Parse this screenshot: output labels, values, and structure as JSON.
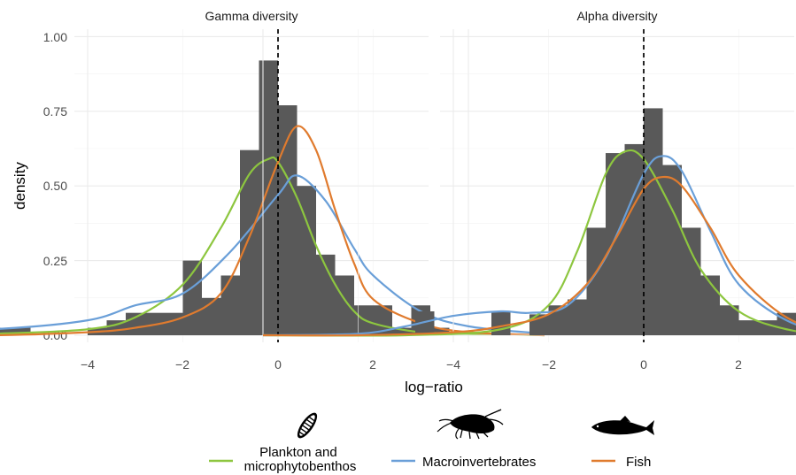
{
  "chart_data": {
    "type": "histogram+density",
    "ylabel": "density",
    "xlabel": "log−ratio",
    "xlim": [
      -4.05,
      2.85
    ],
    "ylim": [
      0,
      1.02
    ],
    "xticks": [
      -4,
      -2,
      0,
      2
    ],
    "xtick_labels": [
      "−4",
      "−2",
      "0",
      "2"
    ],
    "yticks": [
      0,
      0.25,
      0.5,
      0.75,
      1.0
    ],
    "ytick_labels": [
      "0.00",
      "0.25",
      "0.50",
      "0.75",
      "1.00"
    ],
    "reference_line": {
      "x": 0,
      "style": "dashed"
    },
    "grid": true,
    "bin_width": 0.2,
    "bar_color": "#595959",
    "legend": {
      "placement": "bottom",
      "entries": [
        {
          "label": "Plankton and microphytobenthos",
          "color": "#8DC63F",
          "icon": "diatom-icon"
        },
        {
          "label": "Macroinvertebrates",
          "color": "#6A9FD8",
          "icon": "amphipod-icon"
        },
        {
          "label": "Fish",
          "color": "#E07B2E",
          "icon": "fish-icon"
        }
      ]
    },
    "panels": [
      {
        "title": "Gamma diversity",
        "histogram": {
          "bin_left": [
            -4.0,
            -3.0,
            -2.8,
            -2.0,
            -1.8,
            -1.6,
            -1.4,
            -1.2,
            -1.0,
            -0.8,
            -0.6,
            -0.4,
            -0.2,
            0.0,
            0.2,
            0.4,
            0.6,
            0.8,
            1.0,
            1.2,
            1.4,
            1.6,
            2.0
          ],
          "density": [
            0.025,
            0.025,
            0.025,
            0.025,
            0.05,
            0.075,
            0.075,
            0.075,
            0.25,
            0.125,
            0.2,
            0.62,
            0.92,
            0.77,
            0.5,
            0.27,
            0.2,
            0.1,
            0.1,
            0.025,
            0.1,
            0.025,
            0.0
          ]
        },
        "series": [
          {
            "name": "Plankton and microphytobenthos",
            "x": [
              -4.0,
              -3.0,
              -2.0,
              -1.5,
              -1.0,
              -0.6,
              -0.3,
              -0.1,
              0.0,
              0.2,
              0.4,
              0.6,
              0.8,
              1.0,
              1.5,
              2.0,
              2.8
            ],
            "y": [
              0.0,
              0.005,
              0.02,
              0.06,
              0.17,
              0.36,
              0.54,
              0.59,
              0.58,
              0.46,
              0.3,
              0.17,
              0.08,
              0.04,
              0.01,
              0.005,
              0.0
            ]
          },
          {
            "name": "Macroinvertebrates",
            "x": [
              -4.0,
              -3.0,
              -2.0,
              -1.5,
              -1.0,
              -0.5,
              0.0,
              0.2,
              0.5,
              0.8,
              1.0,
              1.5,
              2.0,
              2.8
            ],
            "y": [
              0.015,
              0.02,
              0.05,
              0.1,
              0.14,
              0.28,
              0.47,
              0.535,
              0.45,
              0.29,
              0.2,
              0.08,
              0.03,
              0.005
            ]
          },
          {
            "name": "Fish",
            "x": [
              -4.0,
              -3.0,
              -2.0,
              -1.5,
              -1.0,
              -0.6,
              -0.3,
              0.0,
              0.2,
              0.4,
              0.6,
              0.8,
              1.0,
              1.5,
              2.0,
              2.8
            ],
            "y": [
              0.0,
              0.0,
              0.01,
              0.025,
              0.06,
              0.14,
              0.33,
              0.58,
              0.7,
              0.62,
              0.42,
              0.24,
              0.12,
              0.04,
              0.01,
              0.0
            ]
          }
        ]
      },
      {
        "title": "Alpha diversity",
        "histogram": {
          "bin_left": [
            -2.4,
            -1.6,
            -1.2,
            -1.0,
            -0.8,
            -0.6,
            -0.4,
            -0.2,
            0.0,
            0.2,
            0.4,
            0.6,
            0.8,
            1.0,
            1.2,
            1.4,
            2.6
          ],
          "density": [
            0.08,
            0.08,
            0.07,
            0.1,
            0.12,
            0.36,
            0.61,
            0.64,
            0.76,
            0.57,
            0.36,
            0.2,
            0.1,
            0.05,
            0.05,
            0.075,
            0.04
          ]
        },
        "series": [
          {
            "name": "Plankton and microphytobenthos",
            "x": [
              -4.0,
              -2.5,
              -1.5,
              -1.0,
              -0.7,
              -0.4,
              -0.2,
              0.0,
              0.3,
              0.6,
              1.0,
              1.5,
              2.0,
              2.5,
              2.8
            ],
            "y": [
              0.0,
              0.0,
              0.02,
              0.1,
              0.28,
              0.54,
              0.615,
              0.59,
              0.42,
              0.22,
              0.08,
              0.02,
              0.005,
              0.03,
              0.04
            ]
          },
          {
            "name": "Macroinvertebrates",
            "x": [
              -4.0,
              -3.0,
              -2.5,
              -2.0,
              -1.5,
              -1.2,
              -0.8,
              -0.4,
              0.0,
              0.2,
              0.4,
              0.7,
              1.0,
              1.5,
              2.0,
              2.8
            ],
            "y": [
              0.0,
              0.005,
              0.03,
              0.065,
              0.08,
              0.075,
              0.1,
              0.26,
              0.54,
              0.6,
              0.55,
              0.35,
              0.17,
              0.05,
              0.01,
              0.0
            ]
          },
          {
            "name": "Fish",
            "x": [
              -4.0,
              -3.0,
              -2.0,
              -1.5,
              -1.0,
              -0.6,
              -0.3,
              0.0,
              0.2,
              0.4,
              0.7,
              1.0,
              1.5,
              2.0,
              2.8
            ],
            "y": [
              0.0,
              0.0,
              0.01,
              0.03,
              0.07,
              0.17,
              0.32,
              0.49,
              0.53,
              0.5,
              0.36,
              0.2,
              0.06,
              0.01,
              0.0
            ]
          }
        ]
      }
    ]
  }
}
